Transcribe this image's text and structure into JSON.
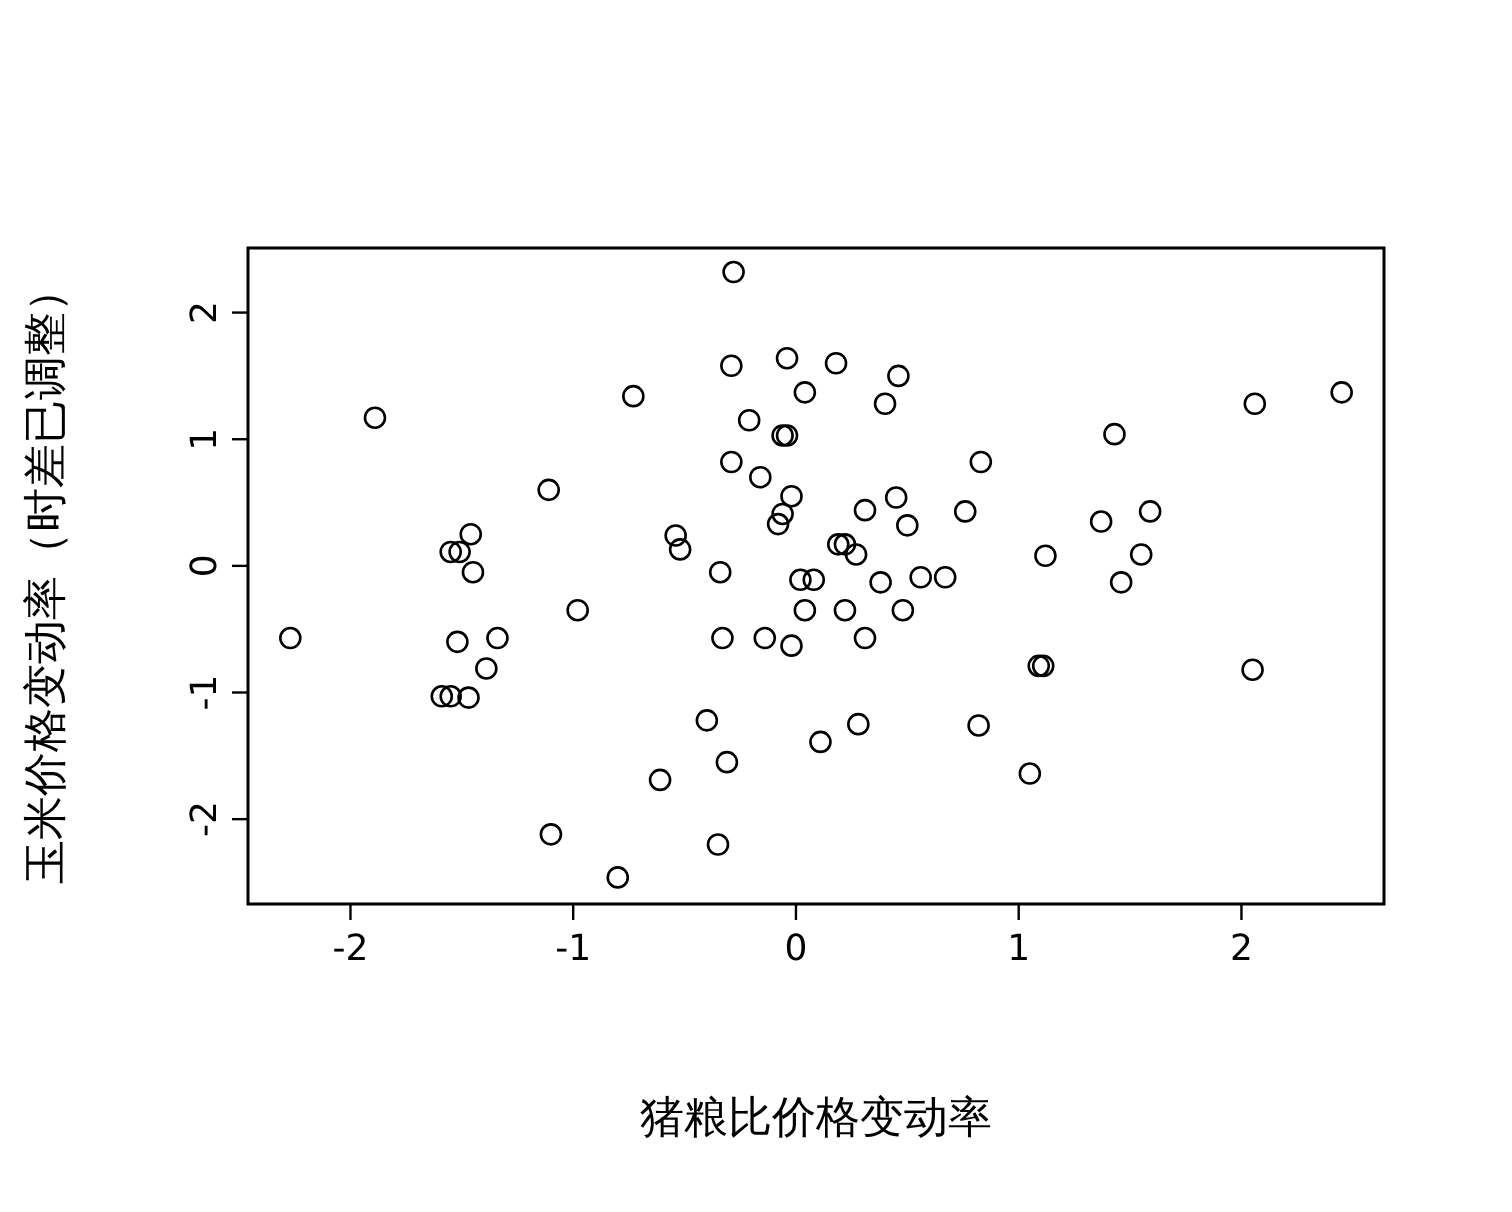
{
  "chart_data": {
    "type": "scatter",
    "xlabel": "猪粮比价格变动率",
    "ylabel": "玉米价格变动率（时差已调整）",
    "marker": "circle",
    "xlim": [
      -2.46,
      2.64
    ],
    "ylim": [
      -2.67,
      2.51
    ],
    "xticks": [
      -2,
      -1,
      0,
      1,
      2
    ],
    "yticks": [
      -2,
      -1,
      0,
      1,
      2
    ],
    "grid": false,
    "series": [
      {
        "color": "#000000",
        "x": [
          -0.28,
          -0.04,
          -0.29,
          0.04,
          -0.73,
          -1.89,
          -0.21,
          -0.06,
          -0.04,
          -0.29,
          -0.16,
          -1.11,
          -0.02,
          -0.06,
          -0.08,
          -1.46,
          -1.55,
          -1.51,
          -0.54,
          -0.52,
          -1.45,
          -0.34,
          0.02,
          0.08,
          0.18,
          0.46,
          0.4,
          2.06,
          2.45,
          1.43,
          0.83,
          0.45,
          0.31,
          0.5,
          0.76,
          1.37,
          1.59,
          0.19,
          0.22,
          0.27,
          1.12,
          1.55,
          0.38,
          0.56,
          0.67,
          1.46,
          0.04,
          0.22,
          0.48,
          0.31,
          -0.02,
          1.09,
          1.11,
          2.05,
          0.28,
          0.11,
          0.82,
          1.05,
          -2.27,
          -1.52,
          -1.34,
          -1.39,
          -1.59,
          -1.55,
          -1.47,
          -0.98,
          -0.33,
          -0.14,
          -0.4,
          -0.31,
          -0.61,
          -1.1,
          -0.35,
          -0.8
        ],
        "values": [
          2.32,
          1.64,
          1.58,
          1.37,
          1.34,
          1.17,
          1.15,
          1.03,
          1.03,
          0.82,
          0.7,
          0.6,
          0.55,
          0.41,
          0.33,
          0.25,
          0.11,
          0.11,
          0.24,
          0.13,
          -0.05,
          -0.05,
          -0.11,
          -0.11,
          1.6,
          1.5,
          1.28,
          1.28,
          1.37,
          1.04,
          0.82,
          0.54,
          0.44,
          0.32,
          0.43,
          0.35,
          0.43,
          0.17,
          0.17,
          0.09,
          0.08,
          0.09,
          -0.13,
          -0.09,
          -0.09,
          -0.13,
          -0.35,
          -0.35,
          -0.35,
          -0.57,
          -0.63,
          -0.79,
          -0.79,
          -0.82,
          -1.25,
          -1.39,
          -1.26,
          -1.64,
          -0.57,
          -0.6,
          -0.57,
          -0.81,
          -1.03,
          -1.03,
          -1.04,
          -0.35,
          -0.57,
          -0.57,
          -1.22,
          -1.55,
          -1.69,
          -2.12,
          -2.2,
          -2.46
        ]
      }
    ]
  }
}
